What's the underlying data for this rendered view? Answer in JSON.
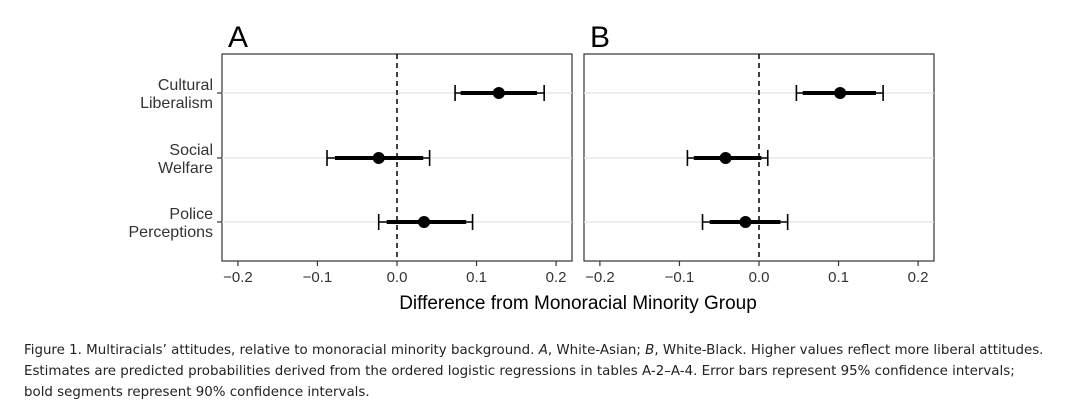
{
  "chart_data": {
    "type": "forest",
    "xlabel": "Difference from Monoracial Minority Group",
    "xlim": [
      -0.22,
      0.22
    ],
    "xticks": [
      -0.2,
      -0.1,
      0.0,
      0.1,
      0.2
    ],
    "xtick_labels": [
      "−0.2",
      "−0.1",
      "0.0",
      "0.1",
      "0.2"
    ],
    "reference_line": 0,
    "categories": [
      {
        "id": "cultural-liberalism",
        "lines": [
          "Cultural",
          "Liberalism"
        ]
      },
      {
        "id": "social-welfare",
        "lines": [
          "Social",
          "Welfare"
        ]
      },
      {
        "id": "police-perceptions",
        "lines": [
          "Police",
          "Perceptions"
        ]
      }
    ],
    "panels": [
      {
        "label": "A",
        "estimates": [
          {
            "category": "cultural-liberalism",
            "point": 0.128,
            "ci95": [
              0.073,
              0.185
            ],
            "ci90": [
              0.08,
              0.176
            ]
          },
          {
            "category": "social-welfare",
            "point": -0.023,
            "ci95": [
              -0.088,
              0.041
            ],
            "ci90": [
              -0.078,
              0.033
            ]
          },
          {
            "category": "police-perceptions",
            "point": 0.034,
            "ci95": [
              -0.023,
              0.095
            ],
            "ci90": [
              -0.013,
              0.087
            ]
          }
        ]
      },
      {
        "label": "B",
        "estimates": [
          {
            "category": "cultural-liberalism",
            "point": 0.102,
            "ci95": [
              0.047,
              0.156
            ],
            "ci90": [
              0.055,
              0.147
            ]
          },
          {
            "category": "social-welfare",
            "point": -0.042,
            "ci95": [
              -0.09,
              0.011
            ],
            "ci90": [
              -0.082,
              0.003
            ]
          },
          {
            "category": "police-perceptions",
            "point": -0.017,
            "ci95": [
              -0.071,
              0.036
            ],
            "ci90": [
              -0.062,
              0.027
            ]
          }
        ]
      }
    ]
  },
  "caption": {
    "figure_label": "Figure 1.",
    "text_1": " Multiracials’ attitudes, relative to monoracial minority background. ",
    "a_label": "A",
    "text_2": ", White-Asian; ",
    "b_label": "B",
    "text_3": ", White-Black. Higher values reflect more liberal attitudes. Estimates are predicted probabilities derived from the ordered logistic regressions in tables A-2–A-4. Error bars represent 95% confidence intervals; bold segments represent 90% confidence intervals."
  }
}
